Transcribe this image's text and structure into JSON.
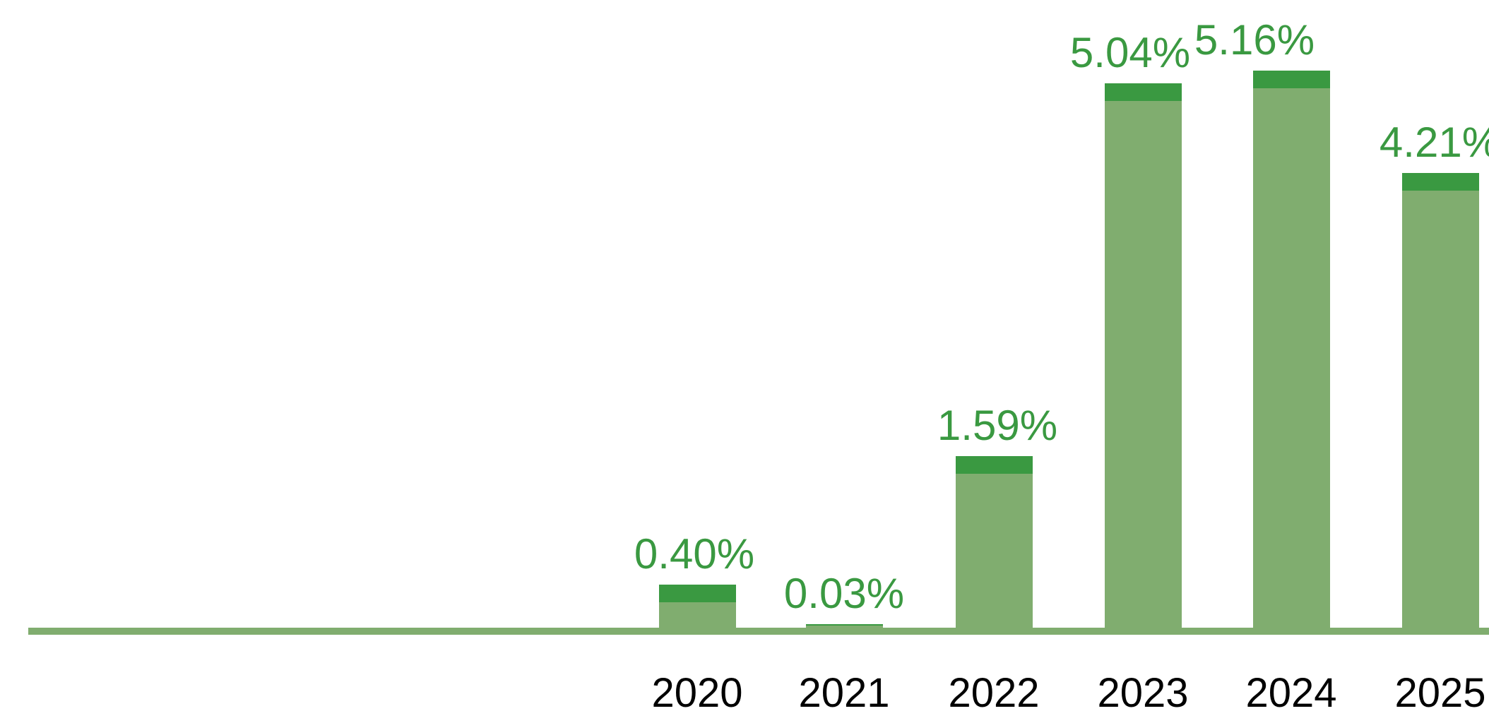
{
  "chart_data": {
    "type": "bar",
    "categories": [
      "2020",
      "2021",
      "2022",
      "2023",
      "2024",
      "2025"
    ],
    "values": [
      0.4,
      0.03,
      1.59,
      5.04,
      5.16,
      4.21
    ],
    "value_labels": [
      "0.40%",
      "0.03%",
      "1.59%",
      "5.04%",
      "5.16%",
      "4.21%"
    ],
    "title": "",
    "xlabel": "",
    "ylabel": "",
    "ylim": [
      0,
      5.8
    ],
    "grid": false,
    "legend": false,
    "axis": "single full-width horizontal baseline at bottom, no tick marks, no y-axis",
    "bar_style": "light green bar body with a short darker green cap segment at the top of each bar",
    "colors": {
      "bar_body": "#80AD6F",
      "bar_cap": "#3A9941",
      "value_label_text": "#3A9941",
      "year_label_text": "#000000",
      "baseline": "#80AD6F",
      "background": "#FFFFFF"
    }
  }
}
